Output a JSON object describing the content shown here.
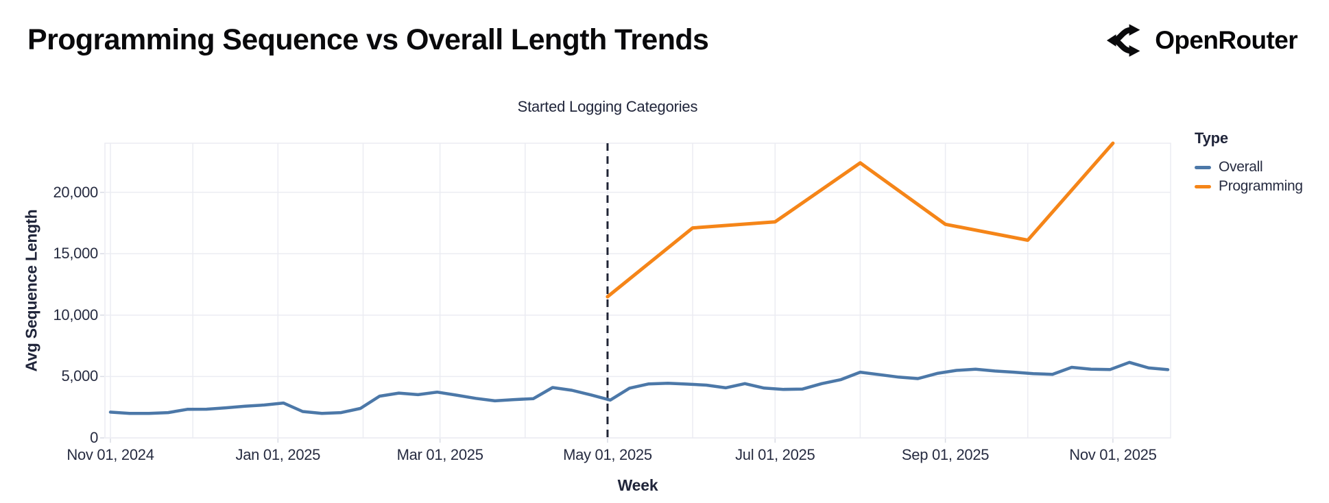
{
  "header": {
    "title": "Programming Sequence vs Overall Length Trends",
    "brand": "OpenRouter"
  },
  "chart_data": {
    "type": "line",
    "title": "Programming Sequence vs Overall Length Trends",
    "xlabel": "Week",
    "ylabel": "Avg Sequence Length",
    "background": "#ffffff",
    "grid": true,
    "x_epoch_date": "2024-11-01",
    "x_domain_days": [
      -2,
      386
    ],
    "ylim": [
      0,
      24000
    ],
    "x_month_gridline_days": [
      0,
      30,
      61,
      92,
      120,
      151,
      181,
      212,
      242,
      273,
      304,
      334,
      365
    ],
    "x_ticks": [
      {
        "day": 0,
        "label": "Nov 01, 2024"
      },
      {
        "day": 61,
        "label": "Jan 01, 2025"
      },
      {
        "day": 120,
        "label": "Mar 01, 2025"
      },
      {
        "day": 181,
        "label": "May 01, 2025"
      },
      {
        "day": 242,
        "label": "Jul 01, 2025"
      },
      {
        "day": 304,
        "label": "Sep 01, 2025"
      },
      {
        "day": 365,
        "label": "Nov 01, 2025"
      }
    ],
    "y_ticks": [
      {
        "value": 0,
        "label": "0"
      },
      {
        "value": 5000,
        "label": "5,000"
      },
      {
        "value": 10000,
        "label": "10,000"
      },
      {
        "value": 15000,
        "label": "15,000"
      },
      {
        "value": 20000,
        "label": "20,000"
      }
    ],
    "annotation": {
      "label": "Started Logging Categories",
      "day": 181,
      "date": "2025-05-01",
      "style": "vertical-dashed-rule",
      "color": "#1f2435"
    },
    "legend": {
      "title": "Type",
      "position": "right"
    },
    "series": [
      {
        "name": "Overall",
        "color": "#4c78a8",
        "cadence": "weekly",
        "start_day": 0,
        "step_days": 7,
        "stroke_width": 4.5,
        "values": [
          2100,
          2000,
          1990,
          2060,
          2330,
          2340,
          2450,
          2580,
          2680,
          2840,
          2150,
          2000,
          2060,
          2400,
          3400,
          3650,
          3520,
          3730,
          3480,
          3220,
          3020,
          3120,
          3200,
          4100,
          3880,
          3500,
          3080,
          4050,
          4400,
          4450,
          4380,
          4300,
          4080,
          4420,
          4060,
          3950,
          3980,
          4420,
          4750,
          5350,
          5150,
          4950,
          4830,
          5250,
          5500,
          5600,
          5450,
          5350,
          5230,
          5180,
          5750,
          5600,
          5570,
          6150,
          5700,
          5560
        ]
      },
      {
        "name": "Programming",
        "color": "#f58518",
        "cadence": "monthly",
        "stroke_width": 5,
        "points": [
          {
            "date": "2025-05-01",
            "day": 181,
            "value": 11500
          },
          {
            "date": "2025-06-01",
            "day": 212,
            "value": 17100
          },
          {
            "date": "2025-07-01",
            "day": 242,
            "value": 17600
          },
          {
            "date": "2025-08-01",
            "day": 273,
            "value": 22400
          },
          {
            "date": "2025-09-01",
            "day": 304,
            "value": 17400
          },
          {
            "date": "2025-10-01",
            "day": 334,
            "value": 16100
          },
          {
            "date": "2025-11-01",
            "day": 365,
            "value": 24000
          }
        ]
      }
    ],
    "style": {
      "grid_color": "#ebecf2",
      "tick_color": "#d9dbe4",
      "text_color": "#262b40"
    }
  }
}
